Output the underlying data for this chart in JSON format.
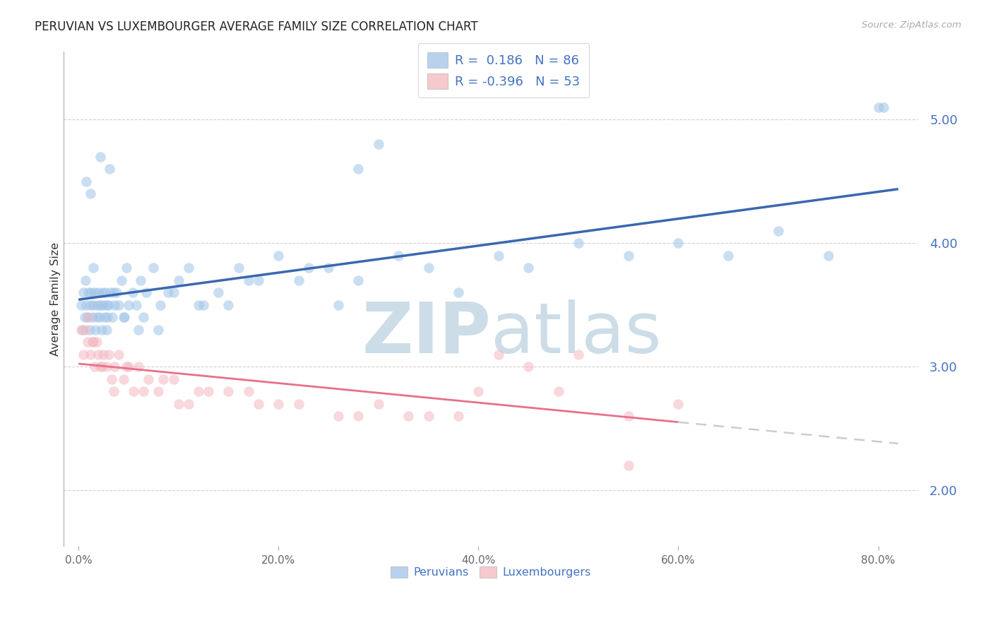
{
  "title": "PERUVIAN VS LUXEMBOURGER AVERAGE FAMILY SIZE CORRELATION CHART",
  "source": "Source: ZipAtlas.com",
  "ylabel": "Average Family Size",
  "xtick_vals": [
    0,
    20,
    40,
    60,
    80
  ],
  "xtick_labels": [
    "0.0%",
    "20.0%",
    "40.0%",
    "60.0%",
    "80.0%"
  ],
  "yticks": [
    2.0,
    3.0,
    4.0,
    5.0
  ],
  "ylim": [
    1.55,
    5.55
  ],
  "xlim": [
    -1.5,
    84
  ],
  "peruvian_color": "#a0c4e8",
  "luxembourger_color": "#f4b8c0",
  "peruvian_line_color": "#3a68b0",
  "luxembourger_line_color": "#e8708a",
  "lux_dash_color": "#cccccc",
  "R_peruvian": 0.186,
  "N_peruvian": 86,
  "R_luxembourger": -0.396,
  "N_luxembourger": 53,
  "watermark_ZIP": "ZIP",
  "watermark_atlas": "atlas",
  "watermark_color": "#ccdde8",
  "title_color": "#222222",
  "source_color": "#aaaaaa",
  "ylabel_color": "#333333",
  "tick_color_y": "#4472c4",
  "tick_color_x": "#666666",
  "title_fontsize": 12,
  "background_color": "#ffffff",
  "peru_x": [
    0.3,
    0.4,
    0.5,
    0.6,
    0.7,
    0.8,
    0.9,
    1.0,
    1.1,
    1.2,
    1.3,
    1.4,
    1.5,
    1.6,
    1.7,
    1.8,
    1.9,
    2.0,
    2.1,
    2.2,
    2.3,
    2.4,
    2.5,
    2.6,
    2.7,
    2.8,
    2.9,
    3.0,
    3.2,
    3.4,
    3.6,
    3.8,
    4.0,
    4.3,
    4.6,
    5.0,
    5.4,
    5.8,
    6.2,
    6.8,
    7.5,
    8.2,
    9.0,
    10.0,
    11.0,
    12.5,
    14.0,
    16.0,
    18.0,
    20.0,
    22.0,
    25.0,
    28.0,
    32.0,
    35.0,
    38.0,
    42.0,
    45.0,
    50.0,
    55.0,
    60.0,
    65.0,
    70.0,
    75.0,
    80.0,
    28.0,
    30.0,
    15.0,
    17.0,
    23.0,
    8.0,
    6.0,
    4.5,
    3.5,
    2.8,
    1.5,
    0.8,
    1.2,
    2.2,
    3.1,
    4.8,
    6.5,
    9.5,
    12.0,
    26.0,
    80.5
  ],
  "peru_y": [
    3.5,
    3.3,
    3.6,
    3.4,
    3.7,
    3.5,
    3.4,
    3.6,
    3.3,
    3.5,
    3.6,
    3.4,
    3.5,
    3.6,
    3.3,
    3.4,
    3.5,
    3.6,
    3.4,
    3.5,
    3.3,
    3.6,
    3.5,
    3.4,
    3.6,
    3.5,
    3.4,
    3.5,
    3.6,
    3.4,
    3.5,
    3.6,
    3.5,
    3.7,
    3.4,
    3.5,
    3.6,
    3.5,
    3.7,
    3.6,
    3.8,
    3.5,
    3.6,
    3.7,
    3.8,
    3.5,
    3.6,
    3.8,
    3.7,
    3.9,
    3.7,
    3.8,
    3.7,
    3.9,
    3.8,
    3.6,
    3.9,
    3.8,
    4.0,
    3.9,
    4.0,
    3.9,
    4.1,
    3.9,
    5.1,
    4.6,
    4.8,
    3.5,
    3.7,
    3.8,
    3.3,
    3.3,
    3.4,
    3.6,
    3.3,
    3.8,
    4.5,
    4.4,
    4.7,
    4.6,
    3.8,
    3.4,
    3.6,
    3.5,
    3.5,
    5.1
  ],
  "lux_x": [
    0.3,
    0.5,
    0.7,
    0.9,
    1.0,
    1.2,
    1.4,
    1.6,
    1.8,
    2.0,
    2.2,
    2.5,
    2.8,
    3.0,
    3.3,
    3.6,
    4.0,
    4.5,
    5.0,
    5.5,
    6.0,
    7.0,
    8.0,
    9.5,
    11.0,
    13.0,
    15.0,
    18.0,
    22.0,
    26.0,
    30.0,
    35.0,
    40.0,
    45.0,
    50.0,
    55.0,
    60.0,
    2.3,
    1.5,
    3.5,
    4.8,
    6.5,
    8.5,
    10.0,
    12.0,
    17.0,
    20.0,
    28.0,
    33.0,
    38.0,
    42.0,
    48.0,
    55.0
  ],
  "lux_y": [
    3.3,
    3.1,
    3.3,
    3.2,
    3.4,
    3.1,
    3.2,
    3.0,
    3.2,
    3.1,
    3.0,
    3.1,
    3.0,
    3.1,
    2.9,
    3.0,
    3.1,
    2.9,
    3.0,
    2.8,
    3.0,
    2.9,
    2.8,
    2.9,
    2.7,
    2.8,
    2.8,
    2.7,
    2.7,
    2.6,
    2.7,
    2.6,
    2.8,
    3.0,
    3.1,
    2.6,
    2.7,
    3.0,
    3.2,
    2.8,
    3.0,
    2.8,
    2.9,
    2.7,
    2.8,
    2.8,
    2.7,
    2.6,
    2.6,
    2.6,
    3.1,
    2.8,
    2.2
  ]
}
